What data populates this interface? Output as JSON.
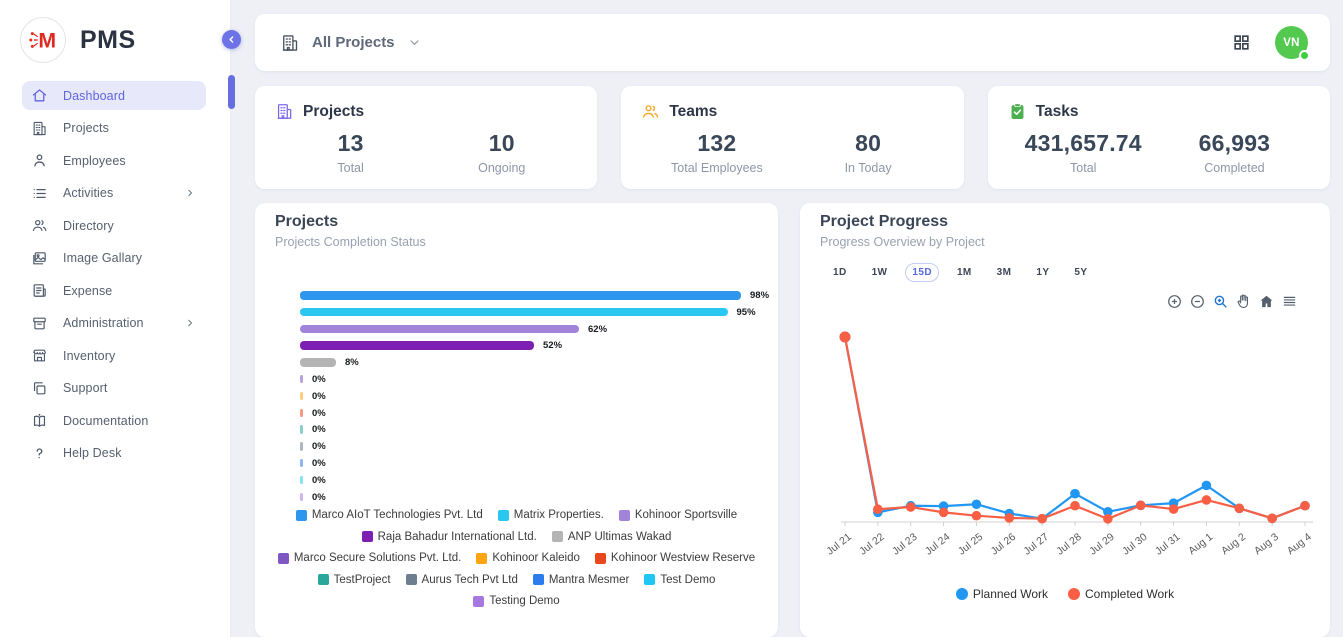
{
  "app": {
    "name": "PMS",
    "logo_letter": "M",
    "logo_color": "#e02a20"
  },
  "sidebar": {
    "items": [
      {
        "label": "Dashboard",
        "icon": "home-icon",
        "active": true,
        "expandable": false
      },
      {
        "label": "Projects",
        "icon": "building-icon",
        "active": false,
        "expandable": false
      },
      {
        "label": "Employees",
        "icon": "user-icon",
        "active": false,
        "expandable": false
      },
      {
        "label": "Activities",
        "icon": "list-icon",
        "active": false,
        "expandable": true
      },
      {
        "label": "Directory",
        "icon": "users-icon",
        "active": false,
        "expandable": false
      },
      {
        "label": "Image Gallary",
        "icon": "image-icon",
        "active": false,
        "expandable": false
      },
      {
        "label": "Expense",
        "icon": "receipt-icon",
        "active": false,
        "expandable": false
      },
      {
        "label": "Administration",
        "icon": "archive-icon",
        "active": false,
        "expandable": true
      },
      {
        "label": "Inventory",
        "icon": "store-icon",
        "active": false,
        "expandable": false
      },
      {
        "label": "Support",
        "icon": "copy-icon",
        "active": false,
        "expandable": false
      },
      {
        "label": "Documentation",
        "icon": "book-icon",
        "active": false,
        "expandable": false
      },
      {
        "label": "Help Desk",
        "icon": "help-icon",
        "active": false,
        "expandable": false
      }
    ]
  },
  "topbar": {
    "scope_label": "All Projects",
    "scope_icon": "building-icon",
    "grid_icon": "grid-icon",
    "avatar_initials": "VN",
    "avatar_color": "#53c94f",
    "online": true
  },
  "stats": {
    "cards": [
      {
        "title": "Projects",
        "icon": "building-icon",
        "icon_color": "#7b68ee",
        "metrics": [
          {
            "value": "13",
            "label": "Total"
          },
          {
            "value": "10",
            "label": "Ongoing"
          }
        ]
      },
      {
        "title": "Teams",
        "icon": "users-icon",
        "icon_color": "#f5a623",
        "metrics": [
          {
            "value": "132",
            "label": "Total Employees"
          },
          {
            "value": "80",
            "label": "In Today"
          }
        ]
      },
      {
        "title": "Tasks",
        "icon": "clipboard-check-icon",
        "icon_color": "#4caf50",
        "metrics": [
          {
            "value": "431,657.74",
            "label": "Total"
          },
          {
            "value": "66,993",
            "label": "Completed"
          }
        ]
      }
    ]
  },
  "progress_controls": {
    "ranges": [
      "1D",
      "1W",
      "15D",
      "1M",
      "3M",
      "1Y",
      "5Y"
    ],
    "selected": "15D",
    "toolbar": [
      "zoom-in-icon",
      "zoom-out-icon",
      "zoom-select-icon",
      "pan-icon",
      "home-solid-icon",
      "menu-icon"
    ]
  },
  "chart_data": [
    {
      "type": "bar",
      "orientation": "horizontal",
      "title": "Projects",
      "subtitle": "Projects Completion Status",
      "unit": "%",
      "xlim": [
        0,
        100
      ],
      "legend_position": "bottom",
      "categories": [
        "Marco AIoT Technologies Pvt. Ltd",
        "Matrix Properties.",
        "Kohinoor Sportsville",
        "Raja Bahadur International Ltd.",
        "ANP Ultimas Wakad",
        "Marco Secure Solutions Pvt. Ltd.",
        "Kohinoor Kaleido",
        "Kohinoor Westview Reserve",
        "TestProject",
        "Aurus Tech Pvt Ltd",
        "Mantra Mesmer",
        "Test Demo",
        "Testing Demo"
      ],
      "values": [
        98,
        95,
        62,
        52,
        8,
        0,
        0,
        0,
        0,
        0,
        0,
        0,
        0
      ],
      "colors": [
        "#2e96ec",
        "#29c6f0",
        "#a183d9",
        "#7d1fb3",
        "#b4b4b4",
        "#7e57c2",
        "#ffa412",
        "#e8481b",
        "#2aa79b",
        "#6e7e8e",
        "#2b7cec",
        "#1fc8f2",
        "#a678e0"
      ]
    },
    {
      "type": "line",
      "title": "Project Progress",
      "subtitle": "Progress Overview by Project",
      "x": [
        "Jul 21",
        "Jul 22",
        "Jul 23",
        "Jul 24",
        "Jul 25",
        "Jul 26",
        "Jul 27",
        "Jul 28",
        "Jul 29",
        "Jul 30",
        "Jul 31",
        "Aug 1",
        "Aug 2",
        "Aug 3",
        "Aug 4"
      ],
      "series": [
        {
          "name": "Planned Work",
          "color": "#2196f3",
          "values": [
            100,
            5.2,
            8.8,
            8.6,
            9.6,
            4.6,
            1.8,
            15.3,
            5.5,
            9.0,
            10.2,
            19.8,
            7.4,
            2.0,
            8.8
          ]
        },
        {
          "name": "Completed Work",
          "color": "#f95f44",
          "values": [
            100,
            6.9,
            8.1,
            5.2,
            3.4,
            2.2,
            1.8,
            8.8,
            1.7,
            9.0,
            7.0,
            11.9,
            7.4,
            2.0,
            8.8
          ]
        }
      ],
      "ylim": [
        0,
        105
      ],
      "y_axis_visible": false,
      "grid": false,
      "legend_position": "bottom"
    }
  ]
}
